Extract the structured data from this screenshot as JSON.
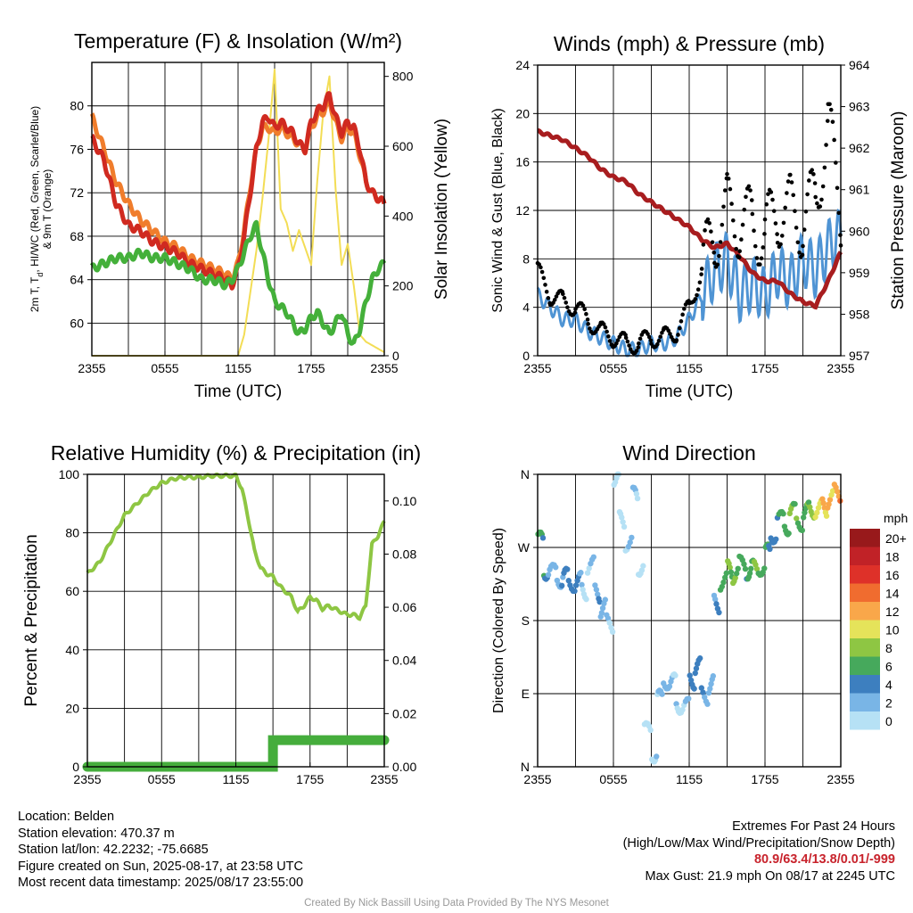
{
  "colors": {
    "temperature": "#d02a20",
    "dewpoint": "#44b03a",
    "temp_9m": "#f07d2c",
    "insolation": "#f3dd55",
    "wind_speed": "#4f94d4",
    "wind_gust": "#000000",
    "pressure": "#a81d1f",
    "humidity": "#8ec643",
    "precipitation": "#45ad3c",
    "grid": "#000000"
  },
  "chart_data": [
    {
      "type": "line",
      "title": "Temperature (F) & Insolation (W/m²)",
      "xlabel": "Time (UTC)",
      "ylabel": "2m T, Td, HI/WC (Red, Green, Scarlet/Blue) & 9m T (Orange)",
      "ylabel_lines": [
        "2m T, T",
        "d",
        ", HI/WC (Red, Green, Scarlet/Blue)",
        "& 9m T (Orange)"
      ],
      "y2label": "Solar Insolation (Yellow)",
      "x_ticks": [
        "2355",
        "0555",
        "1155",
        "1755",
        "2355"
      ],
      "ylim": [
        57,
        84
      ],
      "y_ticks": [
        60,
        64,
        68,
        72,
        76,
        80
      ],
      "y2lim": [
        0,
        840
      ],
      "y2_ticks": [
        0,
        200,
        400,
        600,
        800
      ],
      "grid": true,
      "x": [
        0,
        1,
        2,
        3,
        4,
        5,
        6,
        7,
        8,
        9,
        10,
        11,
        11.5,
        12,
        12.5,
        13,
        13.5,
        14,
        14.5,
        15,
        15.5,
        16,
        16.5,
        17,
        17.5,
        18,
        18.5,
        19,
        19.5,
        20,
        20.5,
        21,
        21.5,
        22,
        22.5,
        23,
        23.5,
        24
      ],
      "series": [
        {
          "values": [
            77,
            75,
            71,
            69,
            68.5,
            67.5,
            67,
            66.5,
            65.5,
            65,
            64.5,
            64,
            63.5,
            65,
            68,
            72,
            76,
            78.5,
            79,
            78,
            78.5,
            78,
            77.5,
            76.5,
            76,
            78.5,
            79.5,
            80,
            81,
            79,
            77.5,
            78.5,
            78,
            76,
            73,
            72,
            71.5,
            71
          ]
        },
        {
          "values": [
            79,
            76,
            73,
            71,
            69.5,
            68.5,
            67.5,
            67,
            66,
            65.5,
            65,
            64.5,
            64,
            65.5,
            68.5,
            72.5,
            76,
            78,
            78,
            77.5,
            78,
            77.5,
            77,
            76.5,
            76,
            78,
            79,
            79.5,
            80.5,
            78.5,
            77,
            78,
            77.5,
            75.5,
            73,
            72,
            71.5,
            71
          ]
        },
        {
          "values": [
            65,
            65.5,
            66,
            66,
            66.5,
            66,
            66,
            65.5,
            65,
            64,
            64,
            63.5,
            64,
            65,
            66.5,
            68,
            69,
            66.5,
            64,
            62,
            61.5,
            61,
            60,
            59,
            59.5,
            60.5,
            61,
            60,
            59,
            60,
            61,
            59,
            58,
            59.5,
            62,
            64,
            65,
            65.5
          ]
        },
        {
          "values": [
            0,
            0,
            0,
            0,
            0,
            0,
            0,
            0,
            0,
            0,
            0,
            0,
            0,
            0,
            60,
            180,
            300,
            450,
            620,
            820,
            420,
            380,
            300,
            360,
            310,
            260,
            500,
            700,
            800,
            480,
            260,
            320,
            200,
            60,
            40,
            30,
            20,
            10
          ]
        }
      ]
    },
    {
      "type": "scatter",
      "title": "Winds (mph) & Pressure (mb)",
      "xlabel": "Time (UTC)",
      "ylabel": "Sonic Wind & Gust (Blue, Black)",
      "y2label": "Station Pressure (Maroon)",
      "x_ticks": [
        "2355",
        "0555",
        "1155",
        "1755",
        "2355"
      ],
      "ylim": [
        0,
        24
      ],
      "y_ticks": [
        0,
        4,
        8,
        12,
        16,
        20,
        24
      ],
      "y2lim": [
        957,
        964
      ],
      "y2_ticks": [
        957,
        958,
        959,
        960,
        961,
        962,
        963,
        964
      ],
      "grid": true,
      "x": [
        0,
        1,
        2,
        3,
        4,
        5,
        6,
        7,
        8,
        9,
        10,
        11,
        12,
        13,
        14,
        15,
        16,
        17,
        18,
        19,
        20,
        21,
        22,
        23,
        24
      ],
      "series": [
        {
          "values": [
            5,
            4,
            3,
            3,
            2,
            1.5,
            1,
            0.5,
            0.5,
            1,
            1,
            1.5,
            3,
            5,
            7,
            8,
            5,
            6,
            5,
            7,
            6,
            8,
            7,
            9,
            10
          ]
        },
        {
          "values": [
            7,
            5,
            4.5,
            4,
            3,
            2,
            1.5,
            1,
            1,
            1.5,
            1.5,
            2,
            4,
            7,
            10,
            12,
            11,
            11,
            10,
            12,
            12,
            11,
            13,
            19,
            12
          ]
        },
        {
          "values": [
            962.4,
            962.3,
            962.2,
            962,
            961.8,
            961.5,
            961.3,
            961.2,
            960.9,
            960.7,
            960.5,
            960.3,
            960.1,
            959.8,
            959.6,
            959.7,
            959.4,
            959,
            958.8,
            958.8,
            958.5,
            958.3,
            958.2,
            958.8,
            959.5
          ]
        }
      ]
    },
    {
      "type": "line",
      "title": "Relative Humidity (%) & Precipitation (in)",
      "ylabel": "Percent & Precipitation",
      "x_ticks": [
        "2355",
        "0555",
        "1155",
        "1755",
        "2355"
      ],
      "ylim": [
        0,
        100
      ],
      "y_ticks": [
        0,
        20,
        40,
        60,
        80,
        100
      ],
      "y2lim": [
        0,
        0.11
      ],
      "y2_ticks": [
        "0.00",
        "0.02",
        "0.04",
        "0.06",
        "0.08",
        "0.10"
      ],
      "grid": true,
      "x": [
        0,
        1,
        2,
        3,
        4,
        5,
        6,
        7,
        8,
        9,
        10,
        11,
        12,
        12.5,
        13,
        13.5,
        14,
        14.5,
        15,
        15.5,
        16,
        16.5,
        17,
        17.5,
        18,
        18.5,
        19,
        19.5,
        20,
        20.5,
        21,
        21.5,
        22,
        22.5,
        23,
        23.5,
        24
      ],
      "series": [
        {
          "values": [
            66,
            70,
            78,
            86,
            90,
            94,
            97,
            98.5,
            99,
            99,
            99.5,
            99.5,
            99.5,
            95,
            85,
            74,
            68,
            66,
            65,
            62,
            60,
            58,
            53,
            55,
            58,
            57,
            54,
            55,
            54,
            53,
            52,
            52,
            51,
            55,
            76,
            79,
            84
          ]
        },
        {
          "values": [
            0,
            0,
            0,
            0,
            0,
            0,
            0,
            0,
            0,
            0,
            0,
            0,
            0,
            0,
            0,
            0,
            0,
            0,
            0.01,
            0.01,
            0.01,
            0.01,
            0.01,
            0.01,
            0.01,
            0.01,
            0.01,
            0.01,
            0.01,
            0.01,
            0.01,
            0.01,
            0.01,
            0.01,
            0.01,
            0.01,
            0.01
          ]
        }
      ]
    },
    {
      "type": "scatter",
      "title": "Wind Direction",
      "ylabel": "Direction (Colored By Speed)",
      "x_ticks": [
        "2355",
        "0555",
        "1155",
        "1755",
        "2355"
      ],
      "y_ticks": [
        "N",
        "E",
        "S",
        "W",
        "N"
      ],
      "ylim": [
        0,
        360
      ],
      "grid": true,
      "legend_title": "mph",
      "legend_labels": [
        "20+",
        "18",
        "16",
        "14",
        "12",
        "10",
        "8",
        "6",
        "4",
        "2",
        "0"
      ],
      "legend_colors": [
        "#98191b",
        "#c12227",
        "#de3129",
        "#f06c2f",
        "#f9a74a",
        "#e5e35a",
        "#8ec643",
        "#46a95c",
        "#3d7fbf",
        "#79b5e6",
        "#b6e1f5"
      ],
      "x": [
        0,
        0.5,
        1,
        1.5,
        2,
        2.5,
        3,
        3.5,
        4,
        4.5,
        5,
        5.5,
        6,
        6.5,
        7,
        7.5,
        8,
        8.5,
        9,
        9.5,
        10,
        10.5,
        11,
        11.5,
        12,
        12.5,
        13,
        13.5,
        14,
        14.5,
        15,
        15.5,
        16,
        16.5,
        17,
        17.5,
        18,
        18.5,
        19,
        19.5,
        20,
        20.5,
        21,
        21.5,
        22,
        22.5,
        23,
        23.5,
        24
      ],
      "y": [
        275,
        245,
        235,
        235,
        230,
        230,
        225,
        220,
        245,
        215,
        195,
        175,
        360,
        300,
        280,
        330,
        250,
        40,
        20,
        80,
        110,
        100,
        80,
        70,
        110,
        120,
        90,
        100,
        200,
        230,
        240,
        240,
        245,
        245,
        240,
        250,
        260,
        290,
        300,
        300,
        310,
        305,
        310,
        320,
        315,
        320,
        330,
        335,
        340
      ],
      "speed": [
        4,
        4,
        3,
        3,
        3,
        3,
        3,
        2,
        2,
        2,
        1,
        1,
        0,
        0,
        0,
        0,
        0,
        1,
        1,
        1,
        1,
        1,
        2,
        2,
        3,
        3,
        3,
        3,
        4,
        5,
        6,
        8,
        7,
        6,
        6,
        5,
        6,
        5,
        6,
        5,
        6,
        7,
        8,
        8,
        9,
        10,
        12,
        14,
        8
      ]
    }
  ],
  "footer": {
    "location": "Location: Belden",
    "elevation": "Station elevation: 470.37 m",
    "latlon": "Station lat/lon: 42.2232; -75.6685",
    "created": "Figure created on Sun, 2025-08-17, at 23:58 UTC",
    "recent": "Most recent data timestamp: 2025/08/17 23:55:00",
    "extremes_title": "Extremes For Past 24 Hours",
    "extremes_legend": "(High/Low/Max Wind/Precipitation/Snow Depth)",
    "extremes_values": "80.9/63.4/13.8/0.01/-999",
    "max_gust": "Max Gust: 21.9 mph On 08/17 at 2245 UTC",
    "credit": "Created By Nick Bassill Using Data Provided By The NYS Mesonet"
  }
}
